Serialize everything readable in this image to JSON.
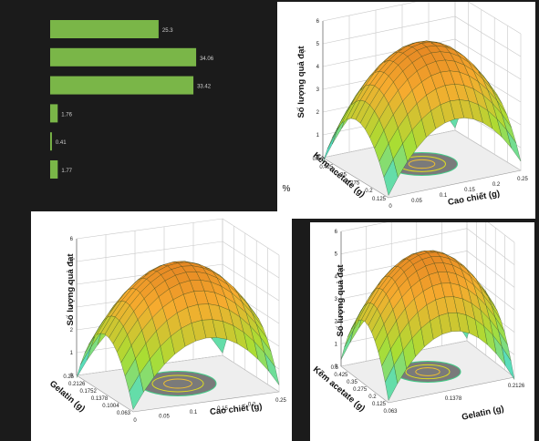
{
  "bar_chart": {
    "type": "bar",
    "orientation": "horizontal",
    "values": [
      25.3,
      34.06,
      33.42,
      1.76,
      0.41,
      1.77
    ],
    "value_labels": [
      "25.3",
      "34.06",
      "33.42",
      "1.76",
      "0.41",
      "1.77"
    ],
    "bar_color": "#7ab648"
  },
  "percent_label": "%",
  "chart_data": [
    {
      "type": "surface",
      "zlabel": "Số lượng quả đạt",
      "xlabel": "Cao chiết (g)",
      "ylabel": "Kẽm acetate (g)",
      "z_ticks": [
        "0",
        "1",
        "2",
        "3",
        "4",
        "5",
        "6"
      ],
      "x_ticks": [
        "0",
        "0.05",
        "0.1",
        "0.15",
        "0.2",
        "0.25"
      ],
      "y_ticks": [
        "0.125",
        "0.2",
        "0.275",
        "0.35",
        "0.425",
        "0.5"
      ],
      "surface_colors": [
        "#44dde0",
        "#aadd33",
        "#f6ac2f",
        "#e07a1f"
      ]
    },
    {
      "type": "surface",
      "zlabel": "Số lượng quả đạt",
      "xlabel": "Cao chiết (g)",
      "ylabel": "Gelatin (g)",
      "z_ticks": [
        "0",
        "1",
        "2",
        "3",
        "4",
        "5",
        "6"
      ],
      "x_ticks": [
        "0",
        "0.05",
        "0.1",
        "0.15",
        "0.2",
        "0.25"
      ],
      "y_ticks": [
        "0.063",
        "0.1004",
        "0.1378",
        "0.1752",
        "0.2126",
        "0.25"
      ],
      "surface_colors": [
        "#44dde0",
        "#aadd33",
        "#f6ac2f",
        "#e07a1f"
      ]
    },
    {
      "type": "surface",
      "zlabel": "Số lượng quả đạt",
      "xlabel": "Gelatin (g)",
      "ylabel": "Kẽm acetate (g)",
      "z_ticks": [
        "0",
        "1",
        "2",
        "3",
        "4",
        "5",
        "6"
      ],
      "x_ticks": [
        "0.063",
        "0.1378",
        "0.2126"
      ],
      "y_ticks": [
        "0.125",
        "0.2",
        "0.275",
        "0.35",
        "0.425",
        "0.5"
      ],
      "surface_colors": [
        "#44dde0",
        "#aadd33",
        "#f6ac2f",
        "#e07a1f"
      ]
    }
  ]
}
